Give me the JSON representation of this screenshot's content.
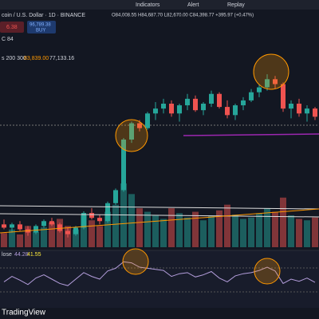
{
  "toolbar": {
    "items": [
      "Indicators",
      "Alert",
      "Replay"
    ]
  },
  "legend": {
    "symbol": "coin / U.S. Dollar · 1D · BINANCE",
    "ohlc": "O84,008.55 H84,687.70 L82,670.00 C84,398.77 +395.97 (+0.47%)",
    "sell_price": "6.38",
    "buy_price": "96,789.38",
    "buy": "BUY",
    "vol": "C 84",
    "ma_name": "s 200 300",
    "ma_1": "83,839.00",
    "ma_2": "77,133.16"
  },
  "rsi_legend": {
    "name": "lose",
    "v1": "44.28",
    "v2": "41.55"
  },
  "logo": "TradingView",
  "chart": {
    "type": "candlestick",
    "candles": [
      [
        62000,
        63500,
        60500,
        61000
      ],
      [
        61000,
        62500,
        59500,
        62000
      ],
      [
        62000,
        63000,
        60000,
        60500
      ],
      [
        60500,
        61500,
        58500,
        59500
      ],
      [
        59500,
        62000,
        59000,
        61500
      ],
      [
        61500,
        63500,
        61000,
        63000
      ],
      [
        63000,
        64000,
        61500,
        62000
      ],
      [
        62000,
        62500,
        59500,
        60000
      ],
      [
        60000,
        61000,
        58000,
        59000
      ],
      [
        59000,
        61500,
        58500,
        61000
      ],
      [
        61000,
        66000,
        60500,
        65500
      ],
      [
        65500,
        67000,
        63500,
        64000
      ],
      [
        64000,
        65000,
        62000,
        63000
      ],
      [
        63000,
        69000,
        62500,
        68500
      ],
      [
        68500,
        73000,
        68000,
        72500
      ],
      [
        72500,
        88500,
        72000,
        88000
      ],
      [
        88000,
        93500,
        87000,
        93000
      ],
      [
        93000,
        94000,
        90500,
        91500
      ],
      [
        91500,
        96500,
        91000,
        96000
      ],
      [
        96000,
        99500,
        94000,
        97500
      ],
      [
        97500,
        100500,
        96000,
        99000
      ],
      [
        99000,
        100000,
        95000,
        96000
      ],
      [
        96000,
        99000,
        93500,
        98500
      ],
      [
        98500,
        102000,
        97000,
        100500
      ],
      [
        100500,
        101500,
        96500,
        97000
      ],
      [
        97000,
        99500,
        95500,
        99000
      ],
      [
        99000,
        103000,
        98000,
        102000
      ],
      [
        102000,
        102500,
        97500,
        98000
      ],
      [
        98000,
        100000,
        94500,
        95500
      ],
      [
        95500,
        99000,
        94000,
        98500
      ],
      [
        98500,
        101000,
        97000,
        100000
      ],
      [
        100000,
        103500,
        99500,
        102500
      ],
      [
        102500,
        105000,
        101000,
        104000
      ],
      [
        104000,
        108000,
        103000,
        106500
      ],
      [
        106500,
        107500,
        103500,
        105000
      ],
      [
        105000,
        105500,
        96500,
        97500
      ],
      [
        97500,
        100000,
        94500,
        99000
      ],
      [
        99000,
        100500,
        95000,
        96000
      ],
      [
        96000,
        98500,
        93500,
        97500
      ],
      [
        97500,
        98000,
        94000,
        95000
      ]
    ],
    "volumes": [
      20,
      25,
      18,
      30,
      22,
      28,
      35,
      40,
      30,
      25,
      45,
      38,
      30,
      50,
      60,
      90,
      75,
      55,
      50,
      45,
      40,
      55,
      48,
      42,
      50,
      38,
      44,
      52,
      60,
      46,
      40,
      42,
      48,
      55,
      50,
      70,
      45,
      40,
      38,
      42
    ],
    "rsi": [
      45,
      55,
      48,
      40,
      52,
      58,
      50,
      42,
      38,
      50,
      62,
      55,
      50,
      65,
      70,
      82,
      80,
      72,
      70,
      68,
      66,
      55,
      60,
      62,
      54,
      58,
      64,
      52,
      45,
      56,
      60,
      62,
      66,
      72,
      65,
      42,
      50,
      46,
      52,
      44
    ],
    "up_color": "#26a69a",
    "down_color": "#ef5350"
  }
}
